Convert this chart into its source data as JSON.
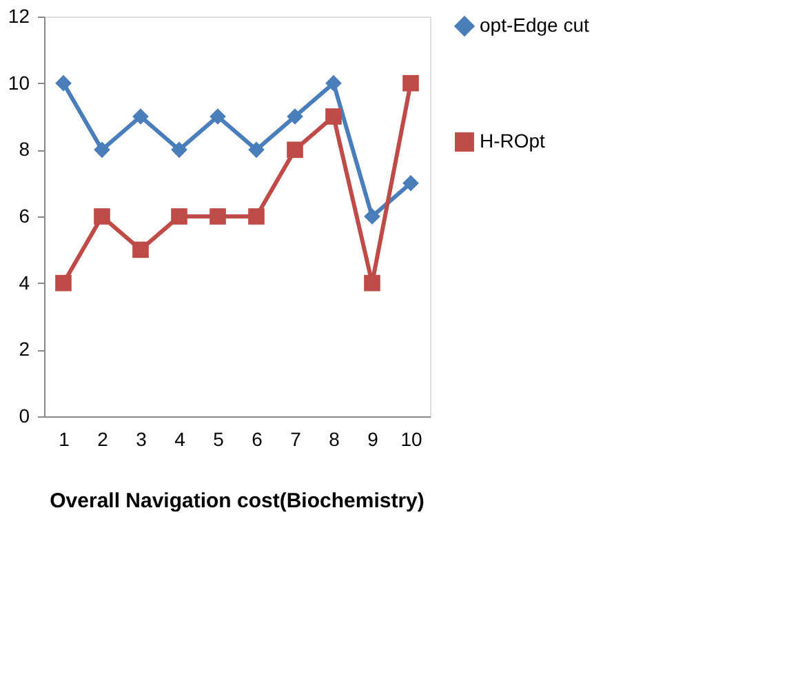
{
  "chart_data": {
    "type": "line",
    "title": "Overall Navigation cost(Biochemistry)",
    "categories": [
      "1",
      "2",
      "3",
      "4",
      "5",
      "6",
      "7",
      "8",
      "9",
      "10"
    ],
    "series": [
      {
        "name": "opt-Edge cut",
        "color": "#4a7ebb",
        "marker": "diamond",
        "values": [
          10,
          8,
          9,
          8,
          9,
          8,
          9,
          10,
          6,
          7
        ]
      },
      {
        "name": "H-ROpt",
        "color": "#be4b48",
        "marker": "square",
        "values": [
          4,
          6,
          5,
          6,
          6,
          6,
          8,
          9,
          4,
          10
        ]
      }
    ],
    "ylim": [
      0,
      12
    ],
    "yticks": [
      0,
      2,
      4,
      6,
      8,
      10,
      12
    ],
    "grid": false,
    "legend": "right"
  }
}
